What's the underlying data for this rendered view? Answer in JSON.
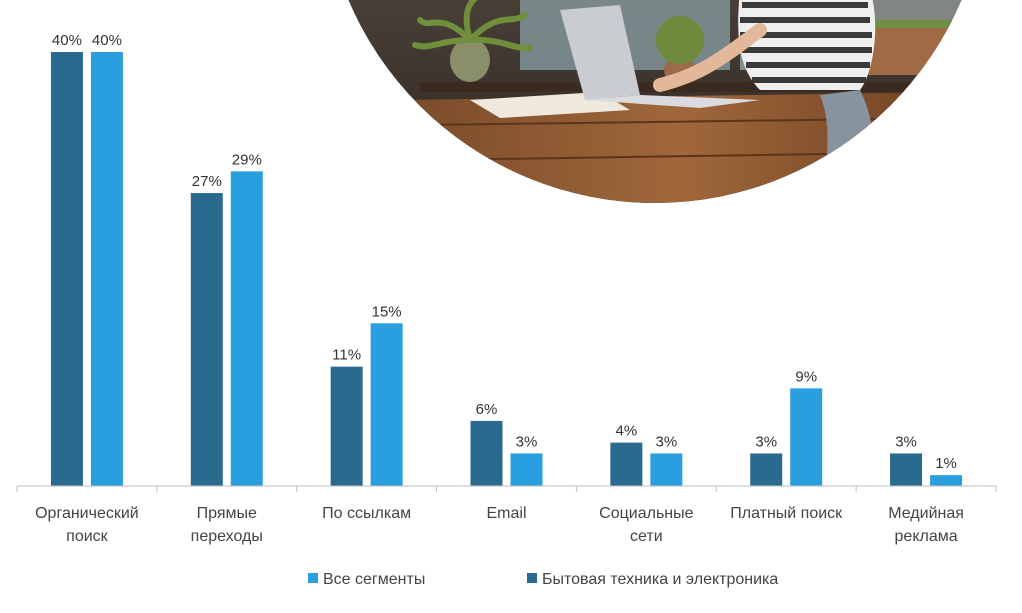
{
  "chart_data": {
    "type": "bar",
    "categories": [
      [
        "Органический",
        "поиск"
      ],
      [
        "Прямые",
        "переходы"
      ],
      [
        "По ссылкам"
      ],
      [
        "Email"
      ],
      [
        "Социальные",
        "сети"
      ],
      [
        "Платный поиск"
      ],
      [
        "Медийная",
        "реклама"
      ]
    ],
    "series": [
      {
        "name": "Бытовая техника и электроника",
        "values": [
          40,
          27,
          11,
          6,
          4,
          3,
          3
        ],
        "color": "#2b6a8f"
      },
      {
        "name": "Все сегменты",
        "values": [
          40,
          29,
          15,
          3,
          3,
          9,
          1
        ],
        "color": "#2a9fdf"
      }
    ],
    "value_suffix": "%",
    "ylim": [
      0,
      40
    ],
    "grid": false,
    "legend_position": "bottom",
    "legend_order": [
      1,
      0
    ]
  },
  "decoration": {
    "photo": "person-working-on-laptop-in-cafe"
  }
}
